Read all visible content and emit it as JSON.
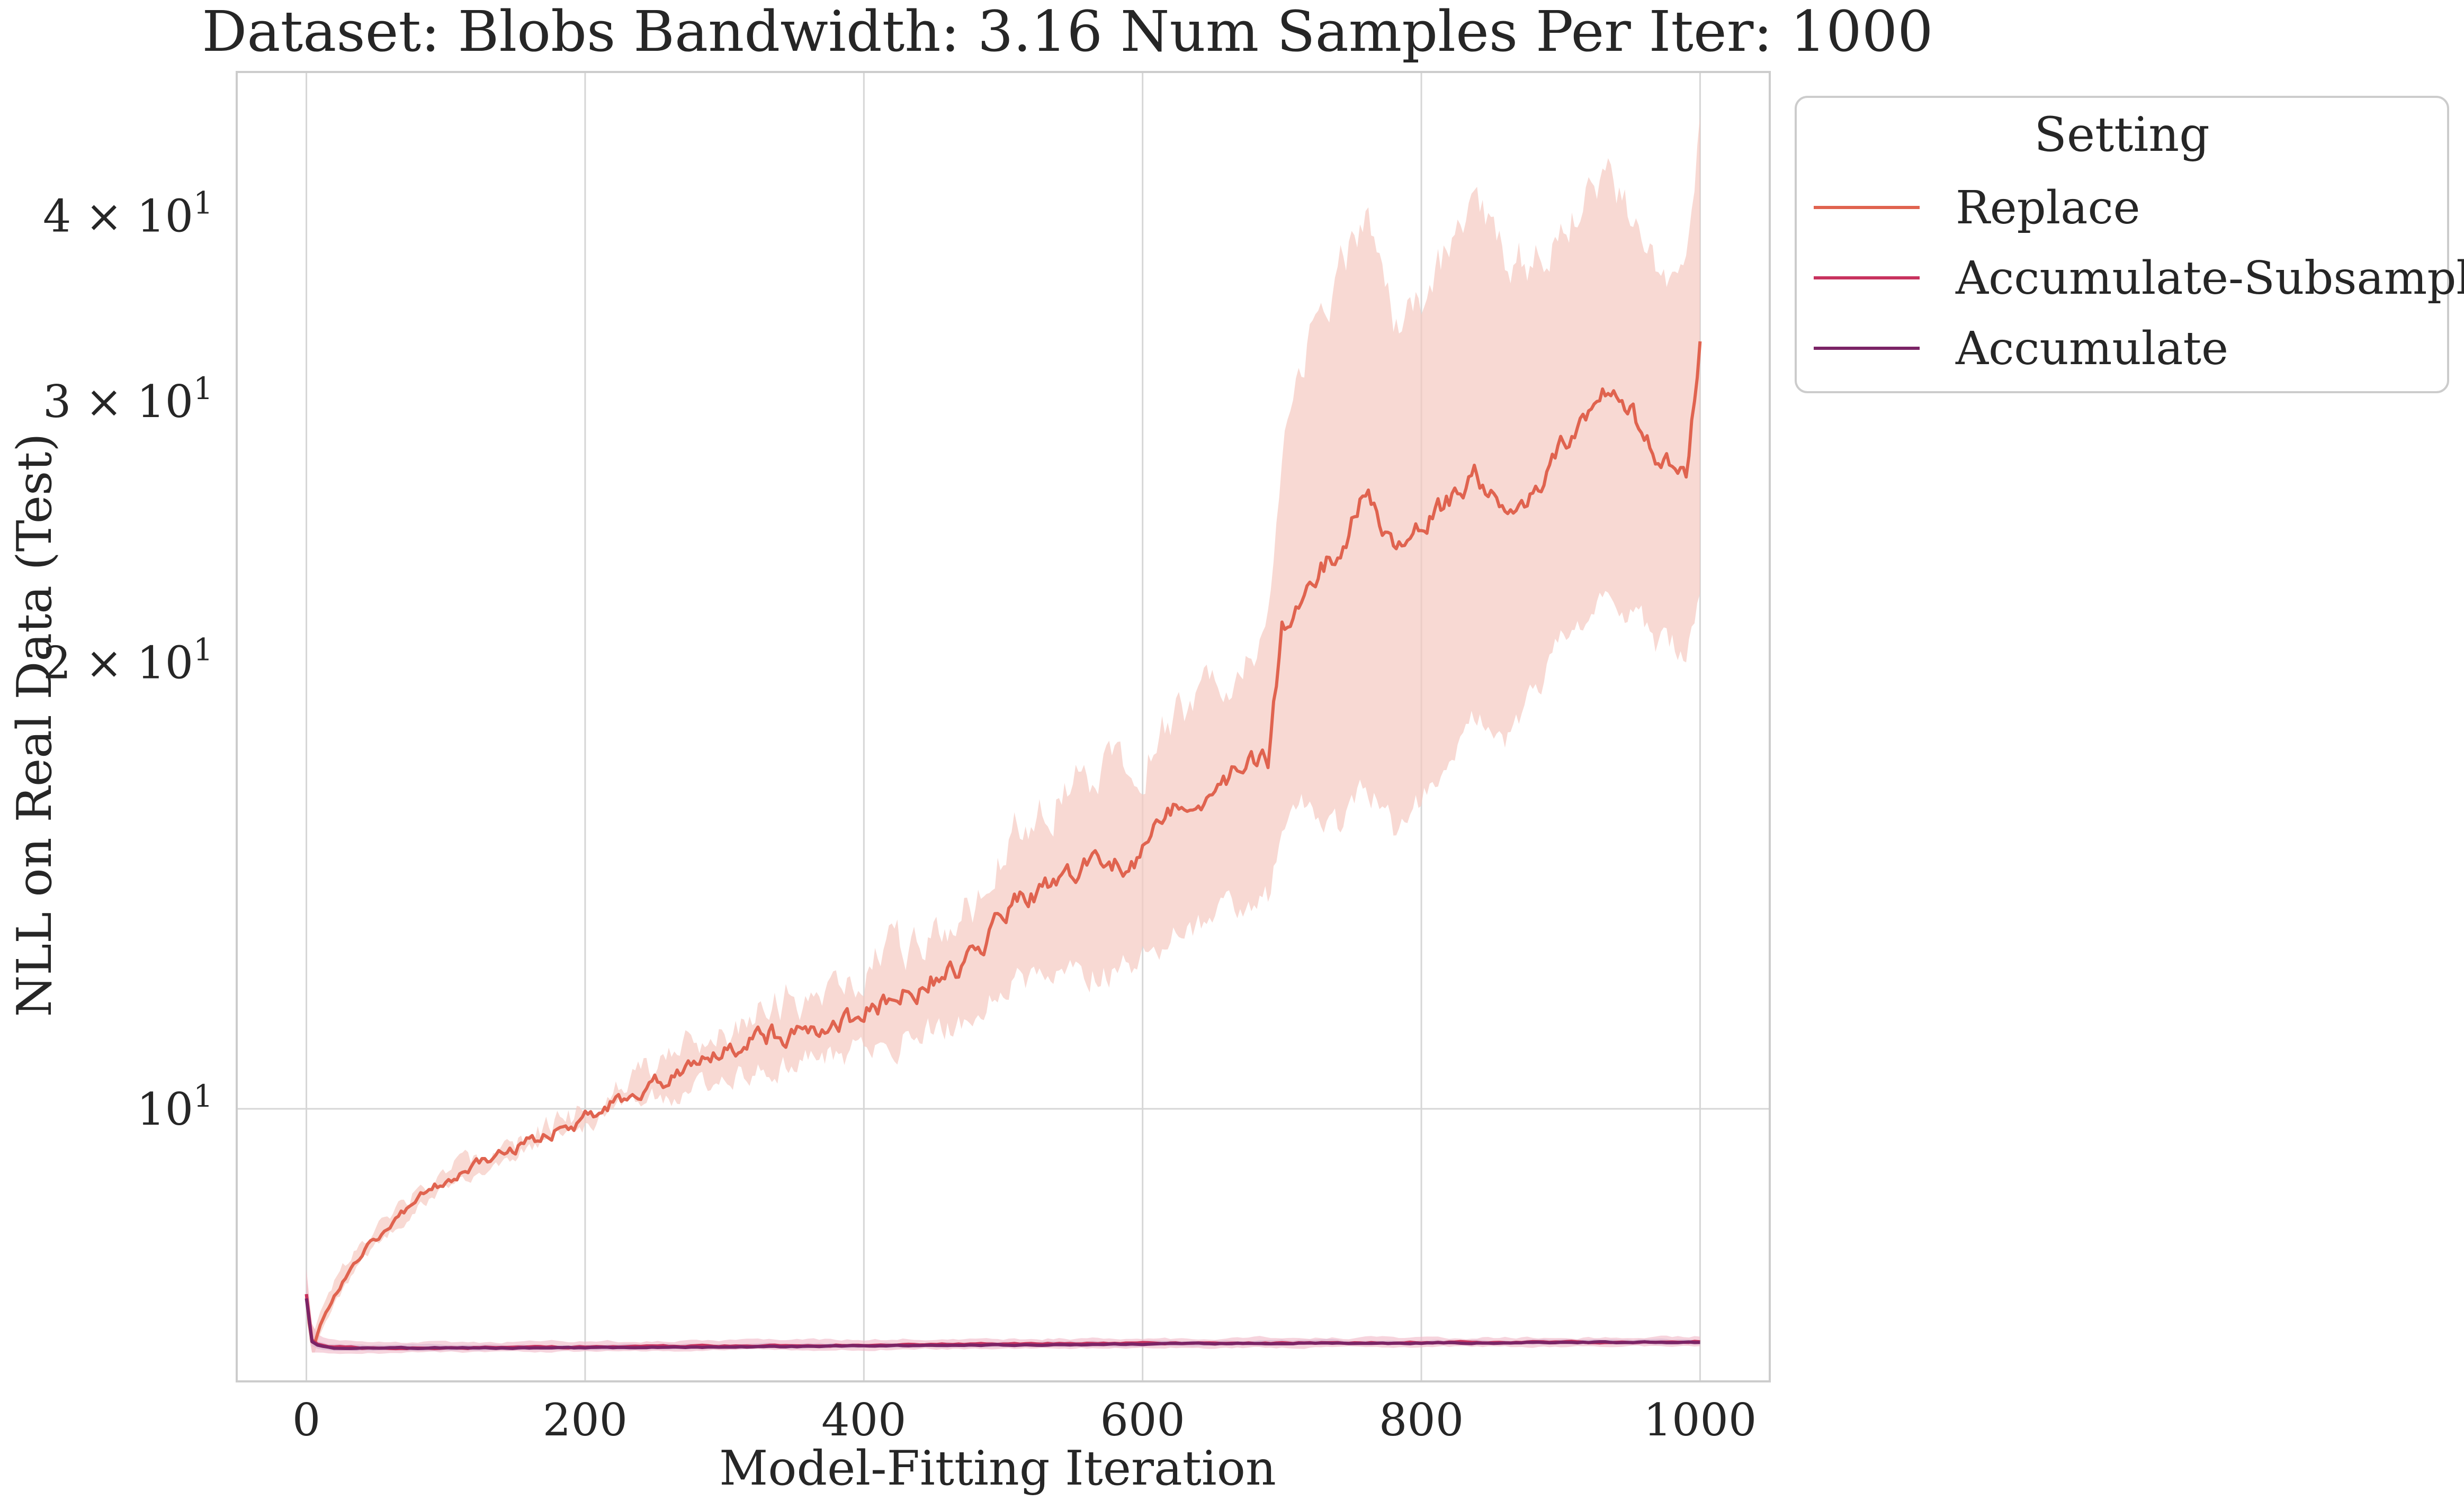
{
  "chart_data": {
    "type": "line",
    "title": "Dataset: Blobs Bandwidth: 3.16 Num Samples Per Iter: 1000",
    "xlabel": "Model-Fitting Iteration",
    "ylabel": "NLL on Real Data (Test)",
    "yscale": "log",
    "xlim": [
      -50,
      1050
    ],
    "ylim": [
      6.55,
      50
    ],
    "grid": true,
    "x_ticks": [
      0,
      200,
      400,
      600,
      800,
      1000
    ],
    "x_tick_labels": [
      "0",
      "200",
      "400",
      "600",
      "800",
      "1000"
    ],
    "y_ticks": [
      10,
      20,
      30,
      40
    ],
    "y_tick_labels": [
      {
        "mantissa": "",
        "base": "10",
        "exp": "1"
      },
      {
        "mantissa": "2 × ",
        "base": "10",
        "exp": "1"
      },
      {
        "mantissa": "3 × ",
        "base": "10",
        "exp": "1"
      },
      {
        "mantissa": "4 × ",
        "base": "10",
        "exp": "1"
      }
    ],
    "legend": {
      "title": "Setting",
      "position": "outside-right-top",
      "entries": [
        "Replace",
        "Accumulate-Subsample",
        "Accumulate"
      ]
    },
    "series": [
      {
        "name": "Replace",
        "color": "#e0634f",
        "band_color": "#f5c9c0",
        "x": [
          0,
          3,
          6,
          10,
          20,
          40,
          60,
          80,
          100,
          130,
          160,
          200,
          230,
          260,
          300,
          330,
          360,
          390,
          420,
          450,
          480,
          500,
          530,
          560,
          590,
          620,
          650,
          670,
          690,
          700,
          720,
          740,
          760,
          780,
          800,
          820,
          840,
          860,
          880,
          900,
          920,
          935,
          950,
          970,
          990,
          1000
        ],
        "values": [
          7.5,
          7.0,
          6.95,
          7.15,
          7.5,
          8.0,
          8.35,
          8.7,
          8.95,
          9.25,
          9.5,
          9.85,
          10.2,
          10.5,
          10.9,
          11.2,
          11.3,
          11.5,
          11.9,
          12.2,
          12.6,
          13.6,
          14.1,
          14.6,
          14.5,
          15.9,
          16.3,
          17.0,
          17.2,
          21.0,
          22.8,
          23.6,
          26.0,
          24.0,
          24.5,
          25.8,
          26.8,
          25.1,
          25.8,
          28.2,
          29.0,
          30.5,
          29.7,
          27.5,
          26.6,
          33.0
        ],
        "lower": [
          7.3,
          6.85,
          6.85,
          7.05,
          7.4,
          7.9,
          8.25,
          8.6,
          8.85,
          9.15,
          9.4,
          9.75,
          10.05,
          10.2,
          10.5,
          10.7,
          10.8,
          10.9,
          11.1,
          11.3,
          11.5,
          12.1,
          12.2,
          12.4,
          12.4,
          13.1,
          13.3,
          13.7,
          13.9,
          15.5,
          16.0,
          15.4,
          16.8,
          15.5,
          16.2,
          17.5,
          18.6,
          17.8,
          18.8,
          20.5,
          21.0,
          22.0,
          21.7,
          20.5,
          20.5,
          22.5
        ],
        "upper": [
          7.8,
          7.2,
          7.1,
          7.3,
          7.65,
          8.15,
          8.45,
          8.8,
          9.05,
          9.35,
          9.6,
          9.95,
          10.35,
          10.8,
          11.35,
          11.8,
          12.0,
          12.3,
          12.8,
          13.3,
          13.9,
          15.1,
          16.1,
          16.9,
          16.8,
          18.2,
          19.3,
          20.2,
          21.2,
          27.8,
          32.8,
          36.5,
          40.0,
          34.5,
          35.0,
          38.0,
          40.5,
          37.5,
          37.3,
          39.0,
          41.0,
          42.0,
          40.0,
          37.0,
          36.0,
          45.0
        ]
      },
      {
        "name": "Accumulate-Subsample",
        "color": "#c8325e",
        "band_color": "#f0b8c6",
        "x": [
          0,
          3,
          6,
          10,
          20,
          40,
          100,
          200,
          300,
          400,
          500,
          600,
          700,
          800,
          900,
          1000
        ],
        "values": [
          7.5,
          7.0,
          6.95,
          6.93,
          6.91,
          6.9,
          6.9,
          6.91,
          6.92,
          6.93,
          6.94,
          6.95,
          6.95,
          6.96,
          6.96,
          6.97
        ],
        "lower": [
          7.3,
          6.85,
          6.85,
          6.85,
          6.84,
          6.84,
          6.85,
          6.86,
          6.87,
          6.88,
          6.89,
          6.9,
          6.9,
          6.91,
          6.91,
          6.92
        ],
        "upper": [
          7.8,
          7.2,
          7.08,
          7.02,
          6.99,
          6.97,
          6.96,
          6.97,
          6.98,
          6.99,
          7.0,
          7.0,
          7.01,
          7.01,
          7.01,
          7.02
        ]
      },
      {
        "name": "Accumulate",
        "color": "#7b2466",
        "band_color": "#d9b3cf",
        "x": [
          0,
          3,
          6,
          10,
          20,
          40,
          100,
          200,
          300,
          400,
          500,
          600,
          700,
          800,
          900,
          1000
        ],
        "values": [
          7.45,
          6.98,
          6.94,
          6.92,
          6.9,
          6.9,
          6.9,
          6.9,
          6.91,
          6.92,
          6.93,
          6.94,
          6.95,
          6.95,
          6.96,
          6.96
        ],
        "lower": [
          7.35,
          6.93,
          6.9,
          6.88,
          6.87,
          6.87,
          6.87,
          6.88,
          6.89,
          6.9,
          6.91,
          6.92,
          6.93,
          6.93,
          6.94,
          6.94
        ],
        "upper": [
          7.55,
          7.03,
          6.98,
          6.96,
          6.94,
          6.93,
          6.93,
          6.93,
          6.94,
          6.95,
          6.96,
          6.97,
          6.98,
          6.98,
          6.99,
          6.99
        ]
      }
    ]
  }
}
